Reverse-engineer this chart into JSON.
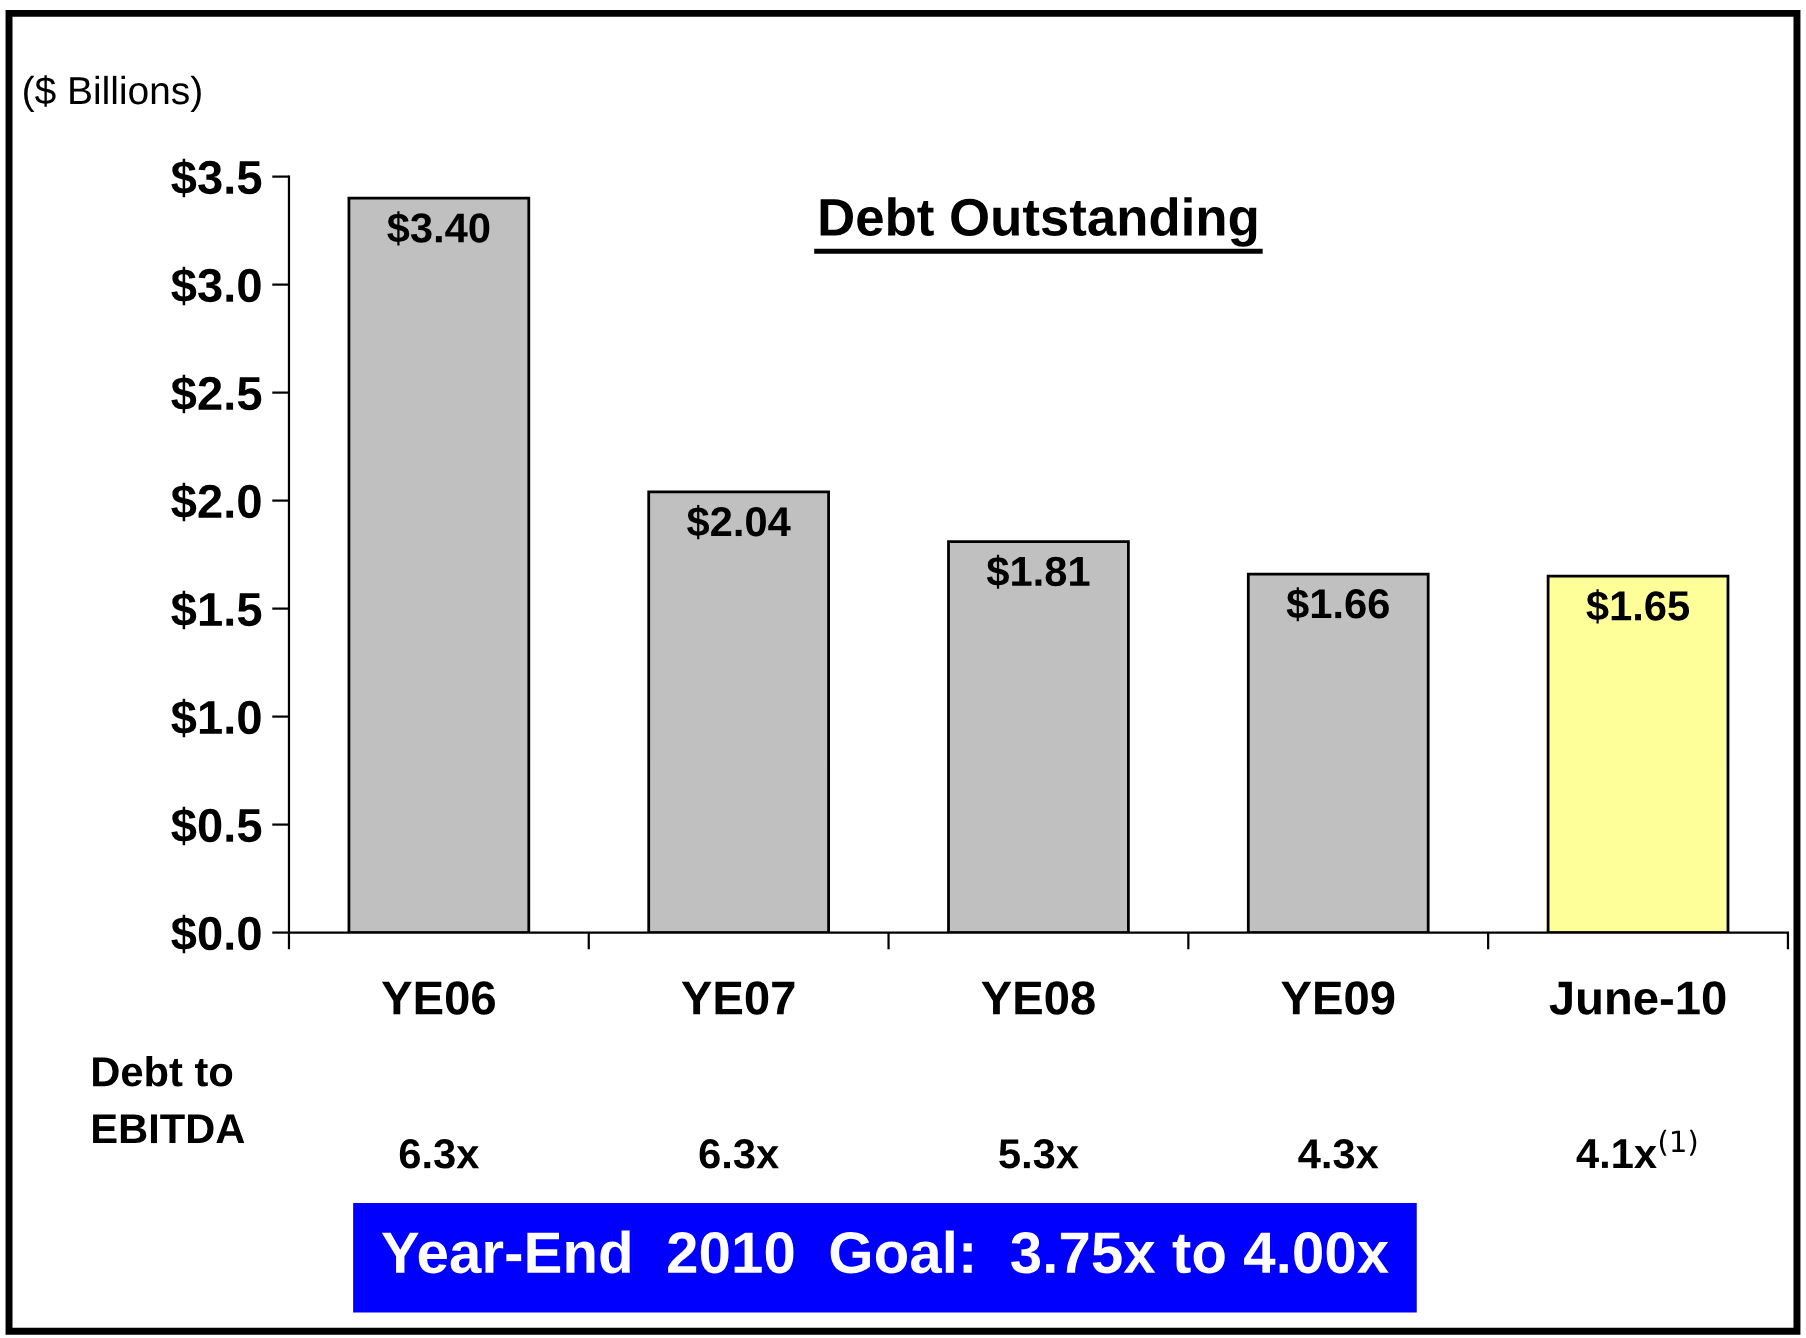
{
  "chart_data": {
    "type": "bar",
    "title": "Debt Outstanding",
    "ylabel": "($ Billions)",
    "categories": [
      "YE06",
      "YE07",
      "YE08",
      "YE09",
      "June-10"
    ],
    "values": [
      3.4,
      2.04,
      1.81,
      1.66,
      1.65
    ],
    "colors": [
      "#c0c0c0",
      "#c0c0c0",
      "#c0c0c0",
      "#c0c0c0",
      "#ffff99"
    ],
    "value_labels": [
      "$3.40",
      "$2.04",
      "$1.81",
      "$1.66",
      "$1.65"
    ],
    "ylim": [
      0,
      3.5
    ],
    "yticks": [
      {
        "value": 0,
        "label": "$0.0"
      },
      {
        "value": 0.5,
        "label": "$0.5"
      },
      {
        "value": 1.0,
        "label": "$1.0"
      },
      {
        "value": 1.5,
        "label": "$1.5"
      },
      {
        "value": 2.0,
        "label": "$2.0"
      },
      {
        "value": 2.5,
        "label": "$2.5"
      },
      {
        "value": 3.0,
        "label": "$3.0"
      },
      {
        "value": 3.5,
        "label": "$3.5"
      }
    ],
    "annotations": [
      "Debt to\nEBITDA",
      "6.3x",
      "6.3x",
      "5.3x",
      "4.3x",
      "4.1x$^{(1)}$",
      "Year-End  2010  Goal:  3.75x to 4.00x"
    ],
    "grid": false,
    "legend": false
  }
}
